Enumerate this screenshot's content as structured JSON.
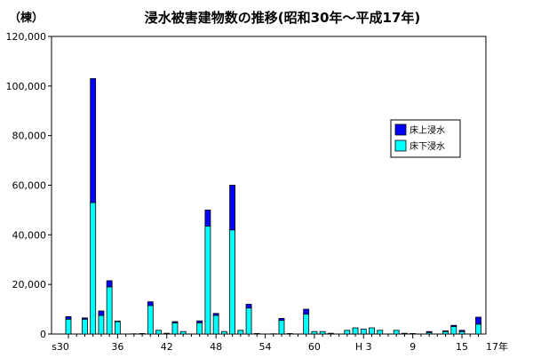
{
  "chart_data": {
    "type": "bar",
    "stacked": true,
    "title": "浸水被害建物数の推移(昭和30年～平成17年)",
    "unit_label": "（棟）",
    "ylim": [
      0,
      120000
    ],
    "y_ticks": [
      "0",
      "20,000",
      "40,000",
      "60,000",
      "80,000",
      "100,000",
      "120,000"
    ],
    "x_tick_labels": [
      "s30",
      "36",
      "42",
      "48",
      "54",
      "60",
      "H 3",
      "9",
      "15",
      "17年"
    ],
    "categories": [
      "S30",
      "S31",
      "S32",
      "S33",
      "S34",
      "S35",
      "S36",
      "S37",
      "S38",
      "S39",
      "S40",
      "S41",
      "S42",
      "S43",
      "S44",
      "S45",
      "S46",
      "S47",
      "S48",
      "S49",
      "S50",
      "S51",
      "S52",
      "S53",
      "S54",
      "S55",
      "S56",
      "S57",
      "S58",
      "S59",
      "S60",
      "S61",
      "S62",
      "S63",
      "H1",
      "H2",
      "H3",
      "H4",
      "H5",
      "H6",
      "H7",
      "H8",
      "H9",
      "H10",
      "H11",
      "H12",
      "H13",
      "H14",
      "H15",
      "H16",
      "H17"
    ],
    "legend_position": "right",
    "series": [
      {
        "name": "床下浸水",
        "color": "#00ffff",
        "values": [
          6000,
          0,
          6000,
          53000,
          7500,
          19000,
          5000,
          0,
          100,
          200,
          11500,
          1500,
          300,
          4500,
          1000,
          0,
          4500,
          43500,
          7500,
          1000,
          42000,
          1500,
          10500,
          200,
          0,
          100,
          5500,
          200,
          0,
          8000,
          1000,
          1000,
          300,
          0,
          1500,
          2500,
          2000,
          2500,
          1500,
          0,
          1500,
          300,
          200,
          0,
          600,
          0,
          1000,
          3000,
          1000,
          0,
          4000
        ]
      },
      {
        "name": "床上浸水",
        "color": "#0000ff",
        "values": [
          1000,
          0,
          500,
          50000,
          1800,
          2500,
          200,
          0,
          0,
          0,
          1500,
          0,
          0,
          500,
          0,
          0,
          800,
          6500,
          800,
          0,
          18000,
          0,
          1500,
          0,
          0,
          0,
          800,
          0,
          0,
          2000,
          0,
          0,
          0,
          0,
          0,
          0,
          0,
          0,
          0,
          0,
          0,
          0,
          0,
          0,
          400,
          0,
          300,
          500,
          500,
          0,
          2800
        ]
      }
    ]
  }
}
